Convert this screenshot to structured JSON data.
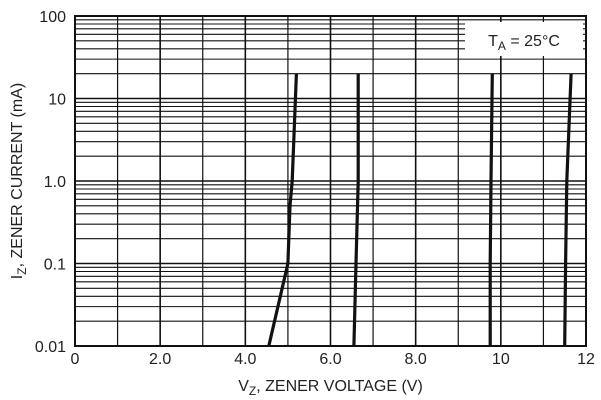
{
  "chart_data": {
    "type": "line",
    "title": "",
    "xlabel": {
      "main": "V",
      "sub": "Z",
      "rest": ", ZENER VOLTAGE (V)"
    },
    "ylabel": {
      "main": "I",
      "sub": "Z",
      "rest": ", ZENER CURRENT (mA)"
    },
    "x_scale": "linear",
    "y_scale": "log",
    "xlim": [
      0,
      12
    ],
    "ylim": [
      0.01,
      100
    ],
    "x_ticks": [
      0,
      2,
      4,
      6,
      8,
      10,
      12
    ],
    "x_tick_labels": [
      "0",
      "2.0",
      "4.0",
      "6.0",
      "8.0",
      "10",
      "12"
    ],
    "y_ticks": [
      0.01,
      0.1,
      1,
      10,
      100
    ],
    "y_tick_labels": [
      "0.01",
      "0.1",
      "1.0",
      "10",
      "100"
    ],
    "grid": true,
    "annotation": {
      "main": "T",
      "sub": "A",
      "rest": " = 25°C"
    },
    "annotation_position": "top-right",
    "colors": {
      "line": "#111111",
      "grid": "#111111",
      "background": "#ffffff"
    },
    "series": [
      {
        "points": [
          [
            4.55,
            0.01
          ],
          [
            5.0,
            0.1
          ],
          [
            5.05,
            0.5
          ],
          [
            5.1,
            1
          ],
          [
            5.2,
            20
          ]
        ]
      },
      {
        "points": [
          [
            6.55,
            0.01
          ],
          [
            6.6,
            0.1
          ],
          [
            6.65,
            1
          ],
          [
            6.65,
            20
          ]
        ]
      },
      {
        "points": [
          [
            9.75,
            0.01
          ],
          [
            9.75,
            0.1
          ],
          [
            9.77,
            1
          ],
          [
            9.8,
            20
          ]
        ]
      },
      {
        "points": [
          [
            11.5,
            0.01
          ],
          [
            11.52,
            0.1
          ],
          [
            11.55,
            1
          ],
          [
            11.65,
            20
          ]
        ]
      }
    ]
  }
}
